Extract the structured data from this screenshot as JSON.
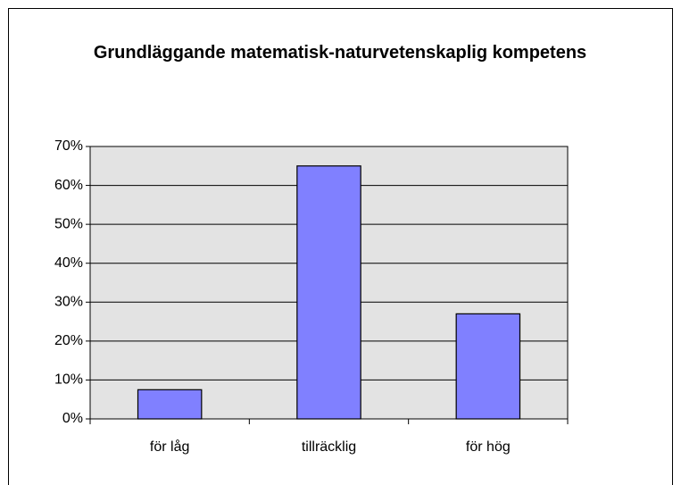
{
  "chart_data": {
    "type": "bar",
    "title": "Grundläggande matematisk-naturvetenskaplig kompetens",
    "categories": [
      "för låg",
      "tillräcklig",
      "för hög"
    ],
    "values": [
      7.5,
      65,
      27
    ],
    "color": "#8080ff",
    "ylim": [
      0,
      70
    ],
    "yticks": [
      {
        "value": 0,
        "label": "0%"
      },
      {
        "value": 10,
        "label": "10%"
      },
      {
        "value": 20,
        "label": "20%"
      },
      {
        "value": 30,
        "label": "30%"
      },
      {
        "value": 40,
        "label": "40%"
      },
      {
        "value": 50,
        "label": "50%"
      },
      {
        "value": 60,
        "label": "60%"
      },
      {
        "value": 70,
        "label": "70%"
      }
    ],
    "grid": true
  }
}
